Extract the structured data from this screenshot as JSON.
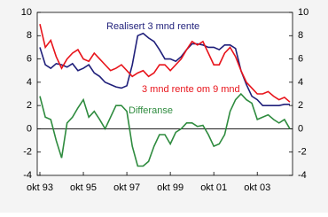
{
  "chart_data": {
    "type": "line",
    "categories": [
      "okt 93",
      null,
      null,
      null,
      null,
      null,
      null,
      null,
      "okt 95",
      null,
      null,
      null,
      null,
      null,
      null,
      null,
      "okt 97",
      null,
      null,
      null,
      null,
      null,
      null,
      null,
      "okt 99",
      null,
      null,
      null,
      null,
      null,
      null,
      null,
      "okt 01",
      null,
      null,
      null,
      null,
      null,
      null,
      null,
      "okt 03",
      null,
      null,
      null,
      null,
      null,
      null
    ],
    "series": [
      {
        "name": "Realisert 3 mnd rente",
        "color": "#1f1f7a",
        "values": [
          7.0,
          5.5,
          5.2,
          5.6,
          5.5,
          5.3,
          5.6,
          5.0,
          5.2,
          5.5,
          4.8,
          4.5,
          4.0,
          3.8,
          3.6,
          3.5,
          3.7,
          5.5,
          8.0,
          8.2,
          7.8,
          7.5,
          6.8,
          6.0,
          6.0,
          5.8,
          6.2,
          6.8,
          7.3,
          7.3,
          7.2,
          7.0,
          7.0,
          6.8,
          7.2,
          7.2,
          6.9,
          5.0,
          3.8,
          2.8,
          2.5,
          2.0,
          2.0,
          2.0,
          2.0,
          2.1,
          2.1
        ]
      },
      {
        "name": "3 mnd rente om 9 mnd",
        "color": "#e8141b",
        "values": [
          9.0,
          7.0,
          7.6,
          6.2,
          5.2,
          6.0,
          6.5,
          6.8,
          6.0,
          5.8,
          6.5,
          6.0,
          5.5,
          5.0,
          5.2,
          5.5,
          5.0,
          4.5,
          4.8,
          5.0,
          4.5,
          4.8,
          5.5,
          5.5,
          5.0,
          5.5,
          6.0,
          6.8,
          7.5,
          7.2,
          7.5,
          6.5,
          5.5,
          5.5,
          6.5,
          7.0,
          6.2,
          5.0,
          4.0,
          3.5,
          3.0,
          3.0,
          3.2,
          2.8,
          2.5,
          2.7,
          2.3
        ]
      },
      {
        "name": "Differanse",
        "color": "#2e8b3e",
        "values": [
          2.8,
          1.0,
          0.8,
          -1.0,
          -2.5,
          0.5,
          1.0,
          1.8,
          2.5,
          1.0,
          1.5,
          0.8,
          0.0,
          1.0,
          2.0,
          2.0,
          1.5,
          -1.5,
          -3.2,
          -3.2,
          -2.8,
          -1.5,
          -0.5,
          -0.5,
          -1.3,
          -0.3,
          0.0,
          0.5,
          0.5,
          0.2,
          0.3,
          -0.5,
          -1.5,
          -1.3,
          -0.5,
          1.5,
          2.5,
          3.0,
          2.5,
          2.2,
          0.8,
          1.0,
          1.2,
          0.8,
          0.5,
          0.8,
          0.0
        ]
      }
    ],
    "ylim": [
      -4,
      10
    ],
    "yticks": [
      -4,
      -2,
      0,
      2,
      4,
      6,
      8,
      10
    ],
    "y2lim": [
      -4,
      10
    ],
    "y2ticks": [
      -4,
      -2,
      0,
      2,
      4,
      6,
      8,
      10
    ]
  }
}
